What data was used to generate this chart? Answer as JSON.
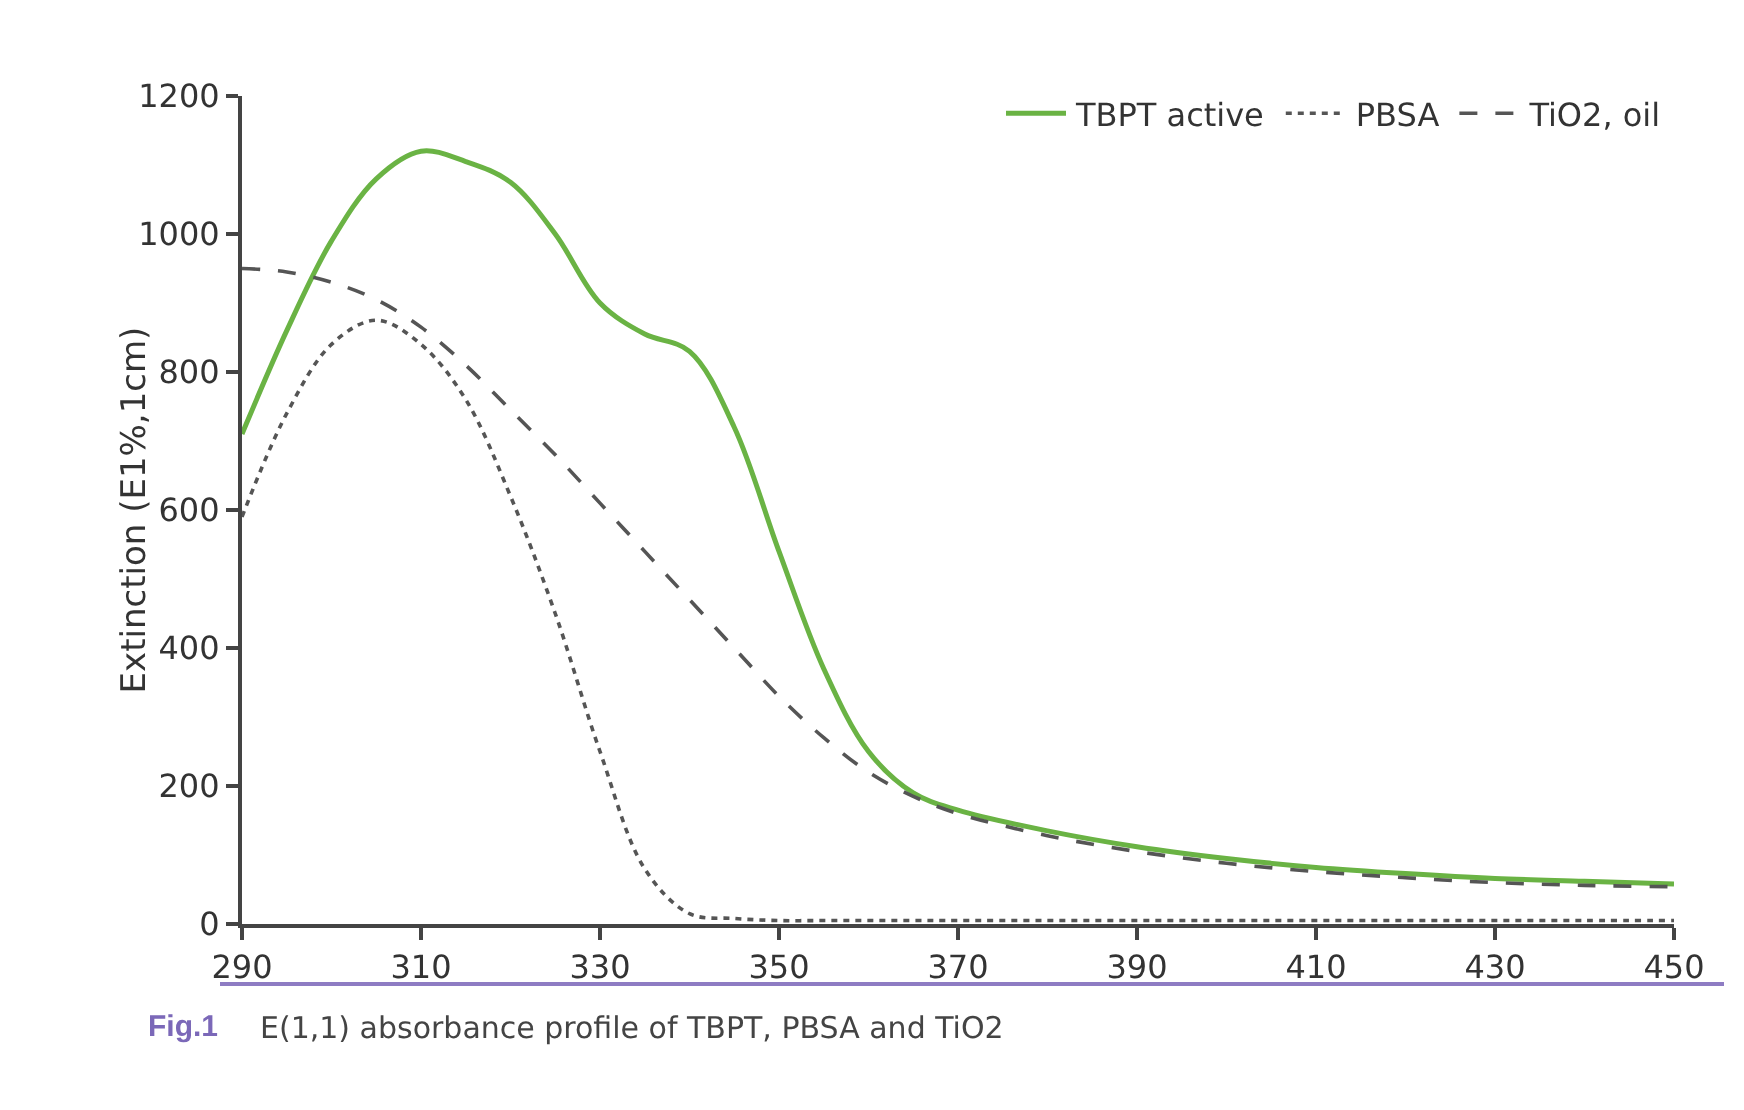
{
  "chart_data": {
    "type": "line",
    "ylabel": "Extinction (E1%,1cm)",
    "xlim": [
      290,
      450
    ],
    "xticks": [
      290,
      310,
      330,
      350,
      370,
      390,
      410,
      430,
      450
    ],
    "ylim": [
      0,
      1200
    ],
    "yticks": [
      0,
      200,
      400,
      600,
      800,
      1000,
      1200
    ],
    "grid": false,
    "legend": "top right",
    "marker": "none",
    "x": [
      290,
      295,
      300,
      305,
      310,
      315,
      320,
      325,
      330,
      335,
      340,
      345,
      350,
      355,
      360,
      365,
      370,
      380,
      390,
      400,
      410,
      420,
      430,
      440,
      450
    ],
    "series": [
      {
        "name": "TBPT active",
        "color": "#6ab344",
        "line_style": "solid",
        "values": [
          710,
          860,
          990,
          1080,
          1120,
          1105,
          1075,
          1000,
          900,
          855,
          830,
          720,
          540,
          370,
          250,
          190,
          165,
          135,
          112,
          95,
          82,
          73,
          66,
          62,
          58
        ]
      },
      {
        "name": "PBSA",
        "color": "#555555",
        "line_style": "dotted",
        "values": [
          590,
          740,
          840,
          875,
          840,
          760,
          620,
          450,
          250,
          80,
          15,
          8,
          5,
          5,
          5,
          5,
          5,
          5,
          5,
          5,
          5,
          5,
          5,
          5,
          5
        ]
      },
      {
        "name": "TiO2, oil",
        "color": "#555555",
        "line_style": "dashed",
        "values": [
          950,
          945,
          930,
          905,
          865,
          810,
          745,
          680,
          610,
          540,
          470,
          400,
          330,
          270,
          220,
          185,
          160,
          128,
          105,
          88,
          76,
          67,
          60,
          56,
          54
        ]
      }
    ],
    "annotations": [
      "Fig.1",
      "E(1,1) absorbance profile of TBPT, PBSA and TiO2"
    ]
  }
}
